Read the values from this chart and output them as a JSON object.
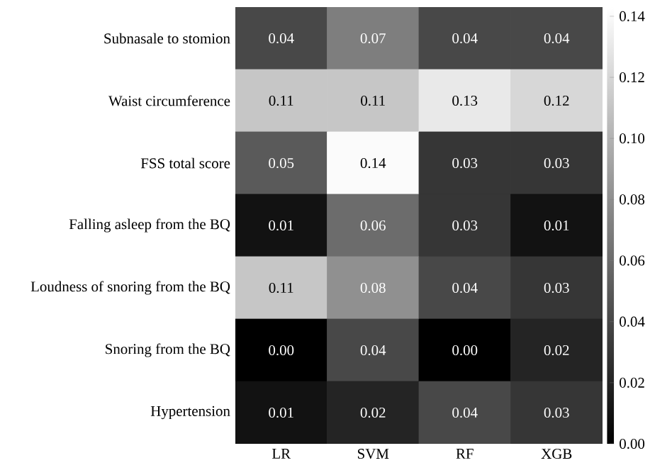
{
  "chart_data": {
    "type": "heatmap",
    "categories": [
      "LR",
      "SVM",
      "RF",
      "XGB"
    ],
    "y_categories": [
      "Subnasale to stomion",
      "Waist circumference",
      "FSS total score",
      "Falling asleep from the BQ",
      "Loudness of snoring from the BQ",
      "Snoring from the BQ",
      "Hypertension"
    ],
    "cells": [
      [
        0.04,
        0.07,
        0.04,
        0.04
      ],
      [
        0.11,
        0.11,
        0.13,
        0.12
      ],
      [
        0.05,
        0.14,
        0.03,
        0.03
      ],
      [
        0.01,
        0.06,
        0.03,
        0.01
      ],
      [
        0.11,
        0.08,
        0.04,
        0.03
      ],
      [
        0.0,
        0.04,
        0.0,
        0.02
      ],
      [
        0.01,
        0.02,
        0.04,
        0.03
      ]
    ],
    "cell_labels": [
      [
        "0.04",
        "0.07",
        "0.04",
        "0.04"
      ],
      [
        "0.11",
        "0.11",
        "0.13",
        "0.12"
      ],
      [
        "0.05",
        "0.14",
        "0.03",
        "0.03"
      ],
      [
        "0.01",
        "0.06",
        "0.03",
        "0.01"
      ],
      [
        "0.11",
        "0.08",
        "0.04",
        "0.03"
      ],
      [
        "0.00",
        "0.04",
        "0.00",
        "0.02"
      ],
      [
        "0.01",
        "0.02",
        "0.04",
        "0.03"
      ]
    ],
    "clim": [
      0,
      0.143
    ],
    "cticks": [
      {
        "value": 0,
        "label": "0.00"
      },
      {
        "value": 0.02,
        "label": "0.02"
      },
      {
        "value": 0.04,
        "label": "0.04"
      },
      {
        "value": 0.06,
        "label": "0.06"
      },
      {
        "value": 0.08,
        "label": "0.08"
      },
      {
        "value": 0.1,
        "label": "0.10"
      },
      {
        "value": 0.12,
        "label": "0.12"
      },
      {
        "value": 0.14,
        "label": "0.14"
      }
    ]
  }
}
